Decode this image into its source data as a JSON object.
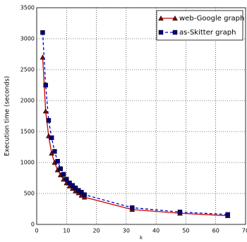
{
  "chart_data": {
    "type": "line",
    "x_label": "k",
    "y_label": "Execution time (seconds)",
    "x": [
      2,
      3,
      4,
      5,
      6,
      7,
      8,
      9,
      10,
      11,
      12,
      13,
      14,
      15,
      16,
      32,
      48,
      64
    ],
    "series": [
      {
        "name": "web-Google graph",
        "color": "#cc0000",
        "marker": "triangle",
        "dashed": false,
        "values": [
          2700,
          1830,
          1430,
          1150,
          1000,
          880,
          800,
          730,
          670,
          620,
          580,
          540,
          510,
          470,
          440,
          240,
          180,
          140
        ]
      },
      {
        "name": "as-Skitter graph",
        "color": "#0000cc",
        "marker": "square",
        "dashed": true,
        "values": [
          3100,
          2250,
          1680,
          1400,
          1180,
          1020,
          900,
          810,
          730,
          670,
          630,
          590,
          550,
          520,
          480,
          270,
          200,
          160
        ]
      }
    ],
    "xlim": [
      0,
      70
    ],
    "xticks": [
      0,
      10,
      20,
      30,
      40,
      50,
      60,
      70
    ],
    "ylim": [
      0,
      3500
    ],
    "yticks": [
      0,
      500,
      1000,
      1500,
      2000,
      2500,
      3000,
      3500
    ],
    "grid": true,
    "legend": "upper right"
  }
}
